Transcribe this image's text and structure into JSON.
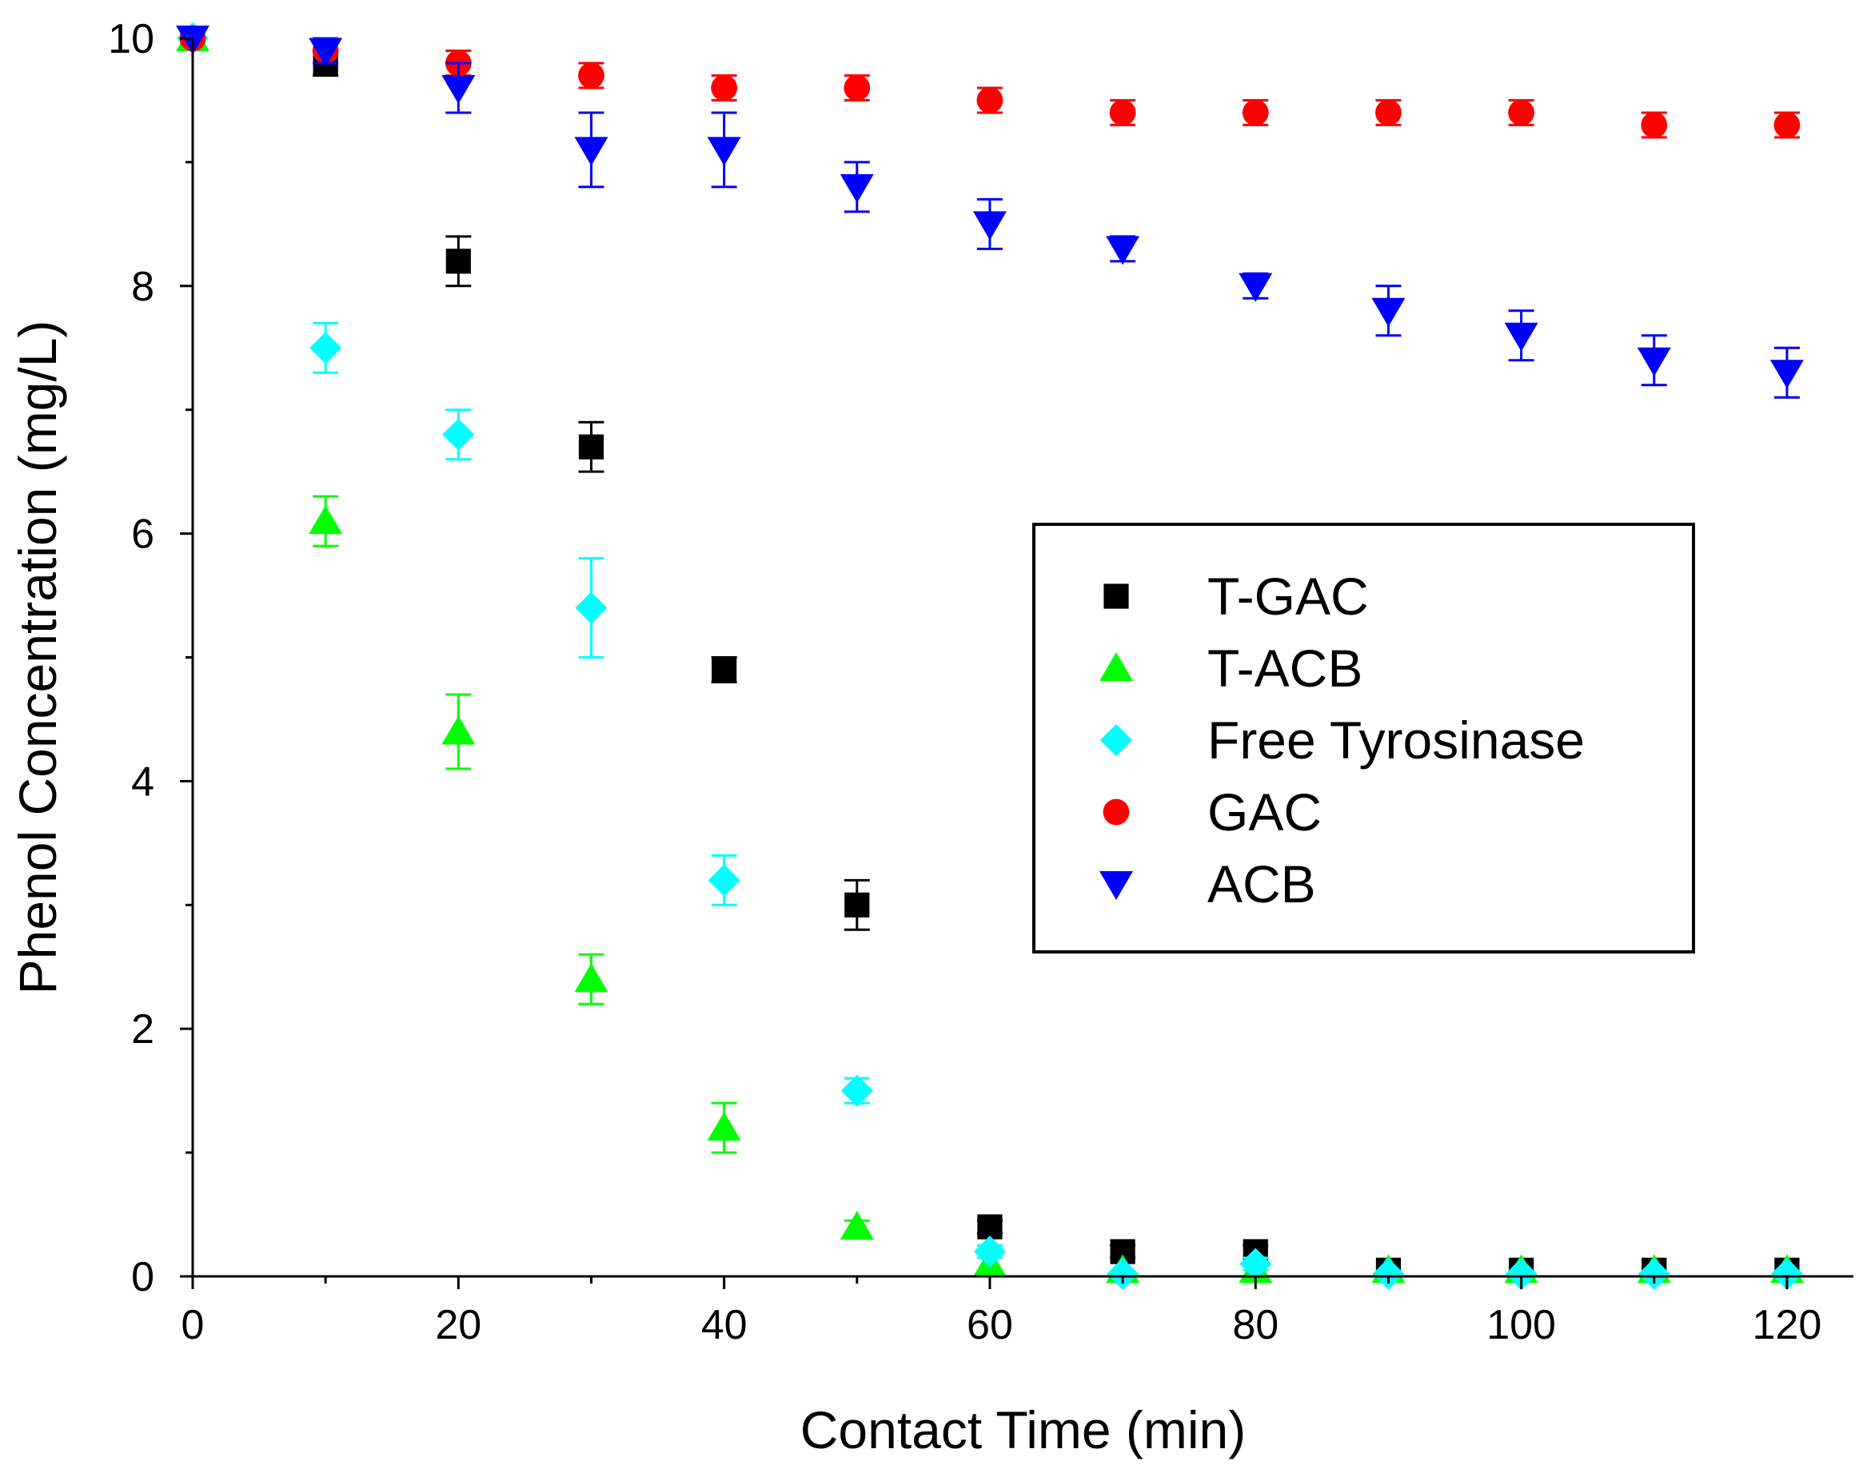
{
  "chart_data": {
    "type": "scatter",
    "title": "",
    "xlabel": "Contact Time (min)",
    "ylabel": "Phenol Concentration (mg/L)",
    "xlim": [
      0,
      125
    ],
    "ylim": [
      0,
      10
    ],
    "xticks": [
      0,
      20,
      40,
      60,
      80,
      100,
      120
    ],
    "yticks": [
      0,
      2,
      4,
      6,
      8,
      10
    ],
    "x_tick_labels": [
      "0",
      "20",
      "40",
      "60",
      "80",
      "100",
      "120"
    ],
    "y_tick_labels": [
      "0",
      "2",
      "4",
      "6",
      "8",
      "10"
    ],
    "grid": false,
    "legend_position": "center-right",
    "x": [
      0,
      10,
      20,
      30,
      40,
      50,
      60,
      70,
      80,
      90,
      100,
      110,
      120
    ],
    "series": [
      {
        "name": "T-GAC",
        "color": "#000000",
        "marker": "square",
        "values": [
          10,
          9.8,
          8.2,
          6.7,
          4.9,
          3.0,
          0.4,
          0.2,
          0.2,
          0.05,
          0.05,
          0.05,
          0.05
        ],
        "errors": [
          0,
          0.1,
          0.2,
          0.2,
          0.1,
          0.2,
          0.05,
          0.05,
          0.05,
          0.02,
          0.02,
          0.02,
          0.02
        ]
      },
      {
        "name": "T-ACB",
        "color": "#00ff00",
        "marker": "triangle-up",
        "values": [
          10,
          6.1,
          4.4,
          2.4,
          1.2,
          0.4,
          0.1,
          0.05,
          0.05,
          0.05,
          0.05,
          0.05,
          0.05
        ],
        "errors": [
          0,
          0.2,
          0.3,
          0.2,
          0.2,
          0.05,
          0.02,
          0.02,
          0.02,
          0.02,
          0.02,
          0.02,
          0.02
        ]
      },
      {
        "name": "Free Tyrosinase",
        "color": "#00ffff",
        "marker": "diamond",
        "values": [
          10,
          7.5,
          6.8,
          5.4,
          3.2,
          1.5,
          0.2,
          0.02,
          0.1,
          0.02,
          0.02,
          0.02,
          0.02
        ],
        "errors": [
          0,
          0.2,
          0.2,
          0.4,
          0.2,
          0.1,
          0.05,
          0.02,
          0.05,
          0.02,
          0.02,
          0.02,
          0.02
        ]
      },
      {
        "name": "GAC",
        "color": "#ff0000",
        "marker": "circle",
        "values": [
          10,
          9.9,
          9.8,
          9.7,
          9.6,
          9.6,
          9.5,
          9.4,
          9.4,
          9.4,
          9.4,
          9.3,
          9.3
        ],
        "errors": [
          0,
          0.1,
          0.1,
          0.1,
          0.1,
          0.1,
          0.1,
          0.1,
          0.1,
          0.1,
          0.1,
          0.1,
          0.1
        ]
      },
      {
        "name": "ACB",
        "color": "#0000ff",
        "marker": "triangle-down",
        "values": [
          10,
          9.9,
          9.6,
          9.1,
          9.1,
          8.8,
          8.5,
          8.3,
          8.0,
          7.8,
          7.6,
          7.4,
          7.3
        ],
        "errors": [
          0,
          0.1,
          0.2,
          0.3,
          0.3,
          0.2,
          0.2,
          0.1,
          0.1,
          0.2,
          0.2,
          0.2,
          0.2
        ]
      }
    ]
  }
}
